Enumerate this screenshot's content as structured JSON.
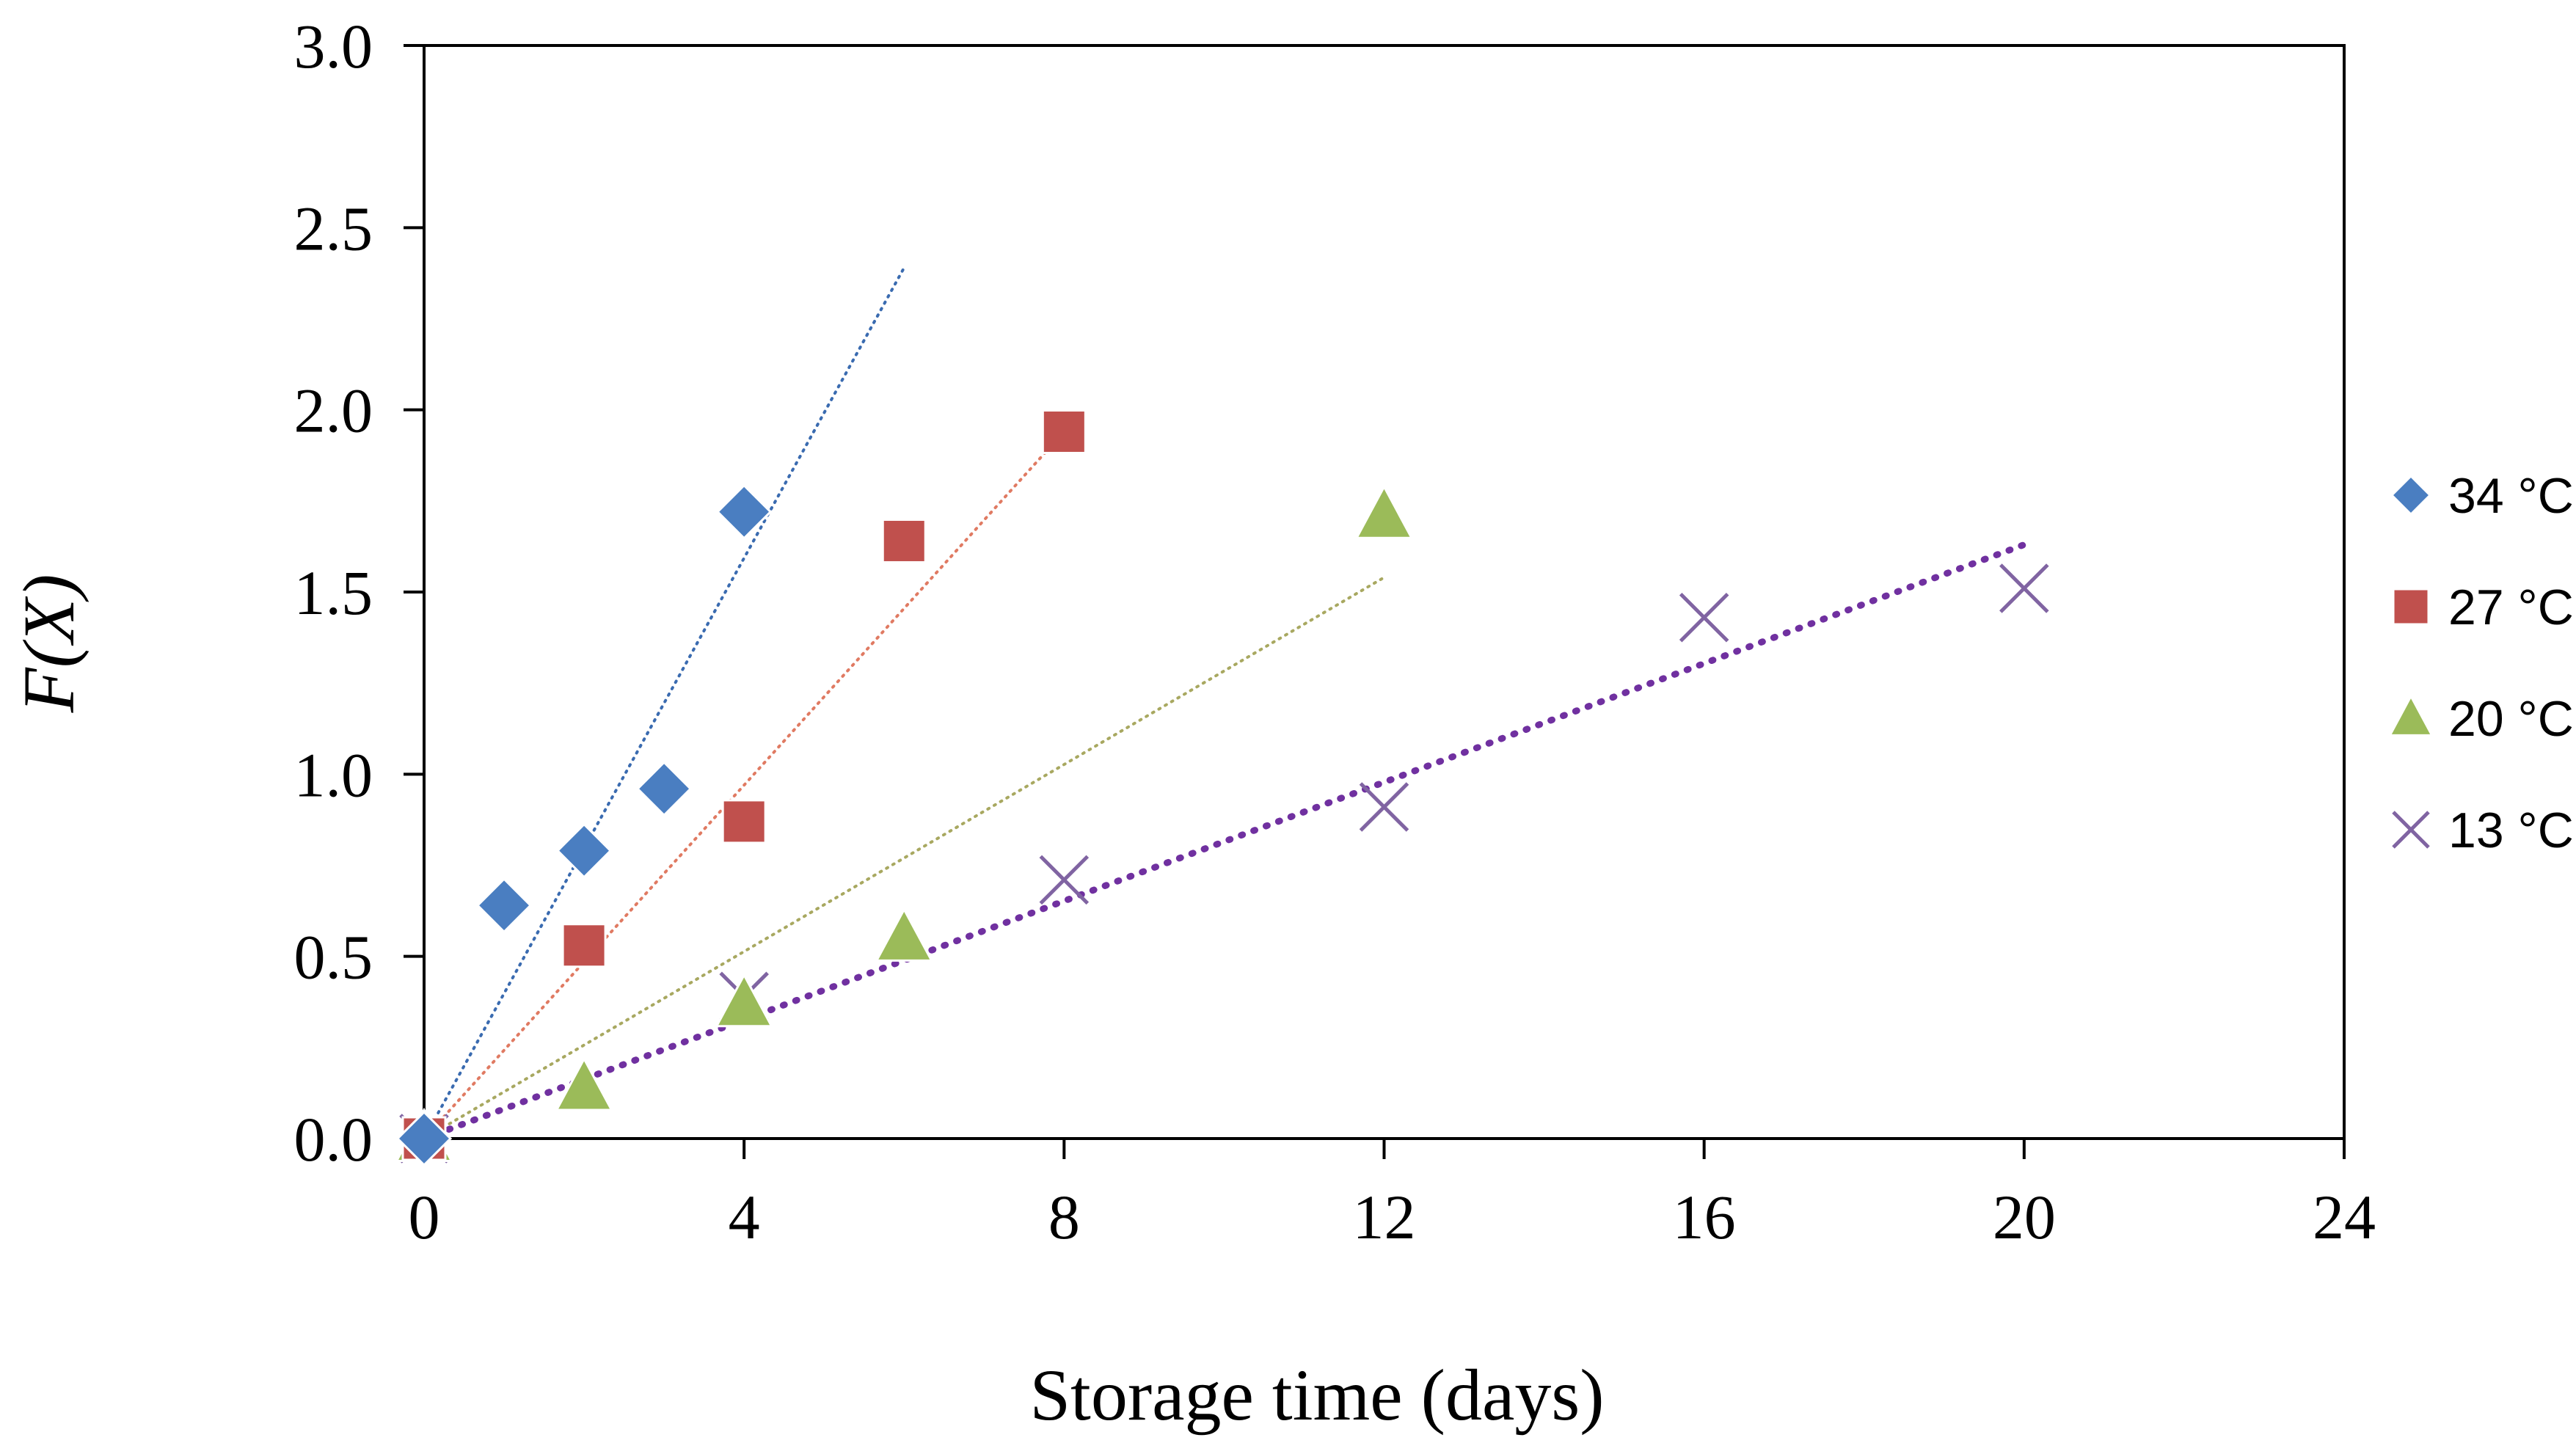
{
  "chart_data": {
    "type": "scatter",
    "title": "",
    "xlabel": "Storage time (days)",
    "ylabel": "F(X)",
    "xlim": [
      0,
      24
    ],
    "ylim": [
      0,
      3.0
    ],
    "xticks": [
      0,
      4,
      8,
      12,
      16,
      20,
      24
    ],
    "xtick_labels": [
      "0",
      "4",
      "8",
      "12",
      "16",
      "20",
      "24"
    ],
    "yticks": [
      0,
      0.5,
      1.0,
      1.5,
      2.0,
      2.5,
      3.0
    ],
    "ytick_labels": [
      "0.0",
      "0.5",
      "1.0",
      "1.5",
      "2.0",
      "2.5",
      "3.0"
    ],
    "grid": false,
    "legend_position": "right",
    "series": [
      {
        "name": "34 °C",
        "marker": "diamond",
        "color": "#4A7EC1",
        "x": [
          0,
          1,
          2,
          3,
          4
        ],
        "y": [
          0.0,
          0.64,
          0.79,
          0.96,
          1.72
        ],
        "trendline": {
          "x": [
            0,
            6
          ],
          "y": [
            0.0,
            2.39
          ],
          "color": "#3A6BB0",
          "style": "dotted"
        }
      },
      {
        "name": "27 °C",
        "marker": "square",
        "color": "#C0504D",
        "x": [
          0,
          2,
          4,
          6,
          8
        ],
        "y": [
          0.0,
          0.53,
          0.87,
          1.64,
          1.94
        ],
        "trendline": {
          "x": [
            0,
            8
          ],
          "y": [
            0.0,
            1.94
          ],
          "color": "#E07A62",
          "style": "dotted"
        }
      },
      {
        "name": "20 °C",
        "marker": "triangle",
        "color": "#9BBB59",
        "x": [
          0,
          2,
          4,
          6,
          12
        ],
        "y": [
          0.0,
          0.14,
          0.37,
          0.55,
          1.71
        ],
        "trendline": {
          "x": [
            0,
            12
          ],
          "y": [
            0.0,
            1.54
          ],
          "color": "#A8A860",
          "style": "dotted"
        }
      },
      {
        "name": "13 °C",
        "marker": "x",
        "color": "#8064A2",
        "x": [
          0,
          4,
          8,
          12,
          16,
          20
        ],
        "y": [
          0.0,
          0.39,
          0.71,
          0.91,
          1.43,
          1.51
        ],
        "trendline": {
          "x": [
            0,
            20
          ],
          "y": [
            0.0,
            1.63
          ],
          "color": "#7030A0",
          "style": "dotted-bold"
        }
      }
    ]
  }
}
